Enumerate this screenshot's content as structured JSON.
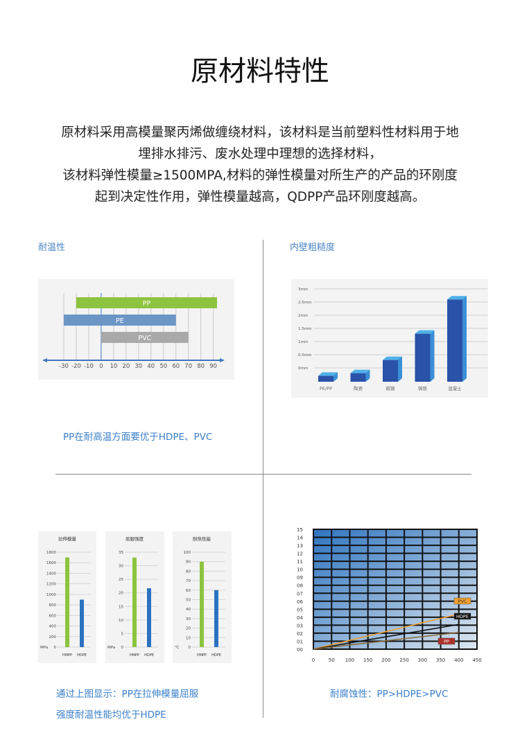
{
  "title": "原材料特性",
  "intro": [
    "原材料采用高模量聚丙烯做缠绕材料，该材料是当前塑料性材料用于地",
    "埋排水排污、废水处理中理想的选择材料，",
    "该材料弹性模量≥1500MPA,材料的弹性模量对所生产的产品的环刚度",
    "起到决定性作用，弹性模量越高，QDPP产品环刚度越高。"
  ],
  "sections": {
    "temp": {
      "label": "耐温性",
      "caption": "PP在耐高温方面要优于HDPE、PVC"
    },
    "rough": {
      "label": "内壁粗糙度"
    },
    "mech": {
      "caption1": "通过上图显示：PP在拉伸模量屈服",
      "caption2": "强度耐温性能均优于HDPE"
    },
    "corr": {
      "caption": "耐腐蚀性：PP>HDPE>PVC"
    }
  },
  "chart_data": [
    {
      "type": "bar",
      "orientation": "horizontal-range",
      "ticks": [
        -30,
        -20,
        -10,
        0,
        10,
        20,
        30,
        40,
        50,
        60,
        70,
        80,
        90
      ],
      "series": [
        {
          "name": "PP",
          "range": [
            -20,
            93
          ],
          "color": "#8dc43f"
        },
        {
          "name": "PE",
          "range": [
            -30,
            60
          ],
          "color": "#6b96c6"
        },
        {
          "name": "PVC",
          "range": [
            0,
            70
          ],
          "color": "#a9a9a9"
        }
      ]
    },
    {
      "type": "bar",
      "categories": [
        "PE/PP",
        "陶瓷",
        "碳钢",
        "铸铁",
        "混凝土"
      ],
      "values": [
        -0.3,
        -0.2,
        0.3,
        1.3,
        2.6
      ],
      "yticks": [
        "0mm",
        "0.5mm",
        "1mm",
        "1.5mm",
        "2mm",
        "2.5mm",
        "3mm"
      ],
      "ylim": [
        -0.5,
        3
      ],
      "color": "#2f6fc0"
    },
    {
      "type": "bar",
      "title": "拉伸模量",
      "unit": "MPa",
      "categories": [
        "HMPP",
        "HDPE"
      ],
      "values": [
        1700,
        900
      ],
      "yticks": [
        0,
        200,
        400,
        600,
        800,
        1000,
        1200,
        1400,
        1600,
        1800
      ],
      "ylim": [
        0,
        1800
      ]
    },
    {
      "type": "bar",
      "title": "屈服强度",
      "unit": "MPa",
      "categories": [
        "HMPP",
        "HDPE"
      ],
      "values": [
        33,
        21.7
      ],
      "yticks": [
        0,
        5,
        10,
        15,
        20,
        25,
        30,
        35
      ],
      "ylim": [
        0,
        35
      ]
    },
    {
      "type": "bar",
      "title": "耐热性能",
      "unit": "℃",
      "categories": [
        "HMPP",
        "HDPE"
      ],
      "values": [
        90,
        60
      ],
      "yticks": [
        0,
        10,
        20,
        30,
        40,
        50,
        60,
        70,
        80,
        90,
        100
      ],
      "ylim": [
        0,
        100
      ]
    },
    {
      "type": "line",
      "xticks": [
        0,
        50,
        100,
        150,
        200,
        250,
        300,
        350,
        400,
        450
      ],
      "yticks": [
        "00",
        "01",
        "02",
        "03",
        "04",
        "05",
        "06",
        "07",
        "08",
        "09",
        "10",
        "11",
        "12",
        "13",
        "14",
        "15"
      ],
      "xlim": [
        0,
        450
      ],
      "ylim": [
        0,
        15
      ],
      "series": [
        {
          "name": "PVC",
          "x": [
            0,
            400
          ],
          "y": [
            0,
            4.4
          ],
          "color": "#f0a030"
        },
        {
          "name": "HDPE",
          "x": [
            0,
            400
          ],
          "y": [
            0,
            3.1
          ],
          "color": "#111111"
        },
        {
          "name": "PP",
          "x": [
            0,
            400
          ],
          "y": [
            0,
            2.1
          ],
          "color": "#8a6a3a"
        }
      ]
    }
  ]
}
